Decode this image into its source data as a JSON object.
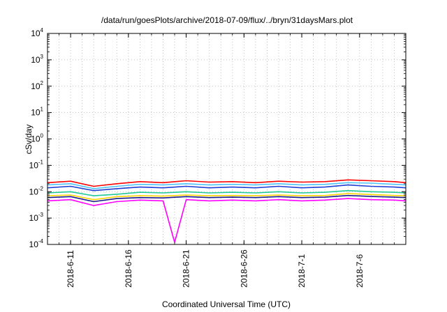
{
  "chart_data": {
    "type": "line",
    "title": "/data/run/goesPlots/archive/2018-07-09/flux/../bryn/31daysMars.plot",
    "xlabel": "Coordinated Universal Time (UTC)",
    "ylabel": "cSv/day",
    "yscale": "log",
    "ylim": [
      0.0001,
      10000
    ],
    "xlim": [
      "2018-06-09",
      "2018-07-10"
    ],
    "grid": true,
    "legend": "none",
    "y_ticks": [
      {
        "base": "10",
        "exp": "-4",
        "value": 0.0001
      },
      {
        "base": "10",
        "exp": "-3",
        "value": 0.001
      },
      {
        "base": "10",
        "exp": "-2",
        "value": 0.01
      },
      {
        "base": "10",
        "exp": "-1",
        "value": 0.1
      },
      {
        "base": "10",
        "exp": "0",
        "value": 1
      },
      {
        "base": "10",
        "exp": "1",
        "value": 10
      },
      {
        "base": "10",
        "exp": "2",
        "value": 100
      },
      {
        "base": "10",
        "exp": "3",
        "value": 1000
      },
      {
        "base": "10",
        "exp": "4",
        "value": 10000
      }
    ],
    "x_ticks": [
      {
        "label": "2018-6-11",
        "date": "2018-06-11"
      },
      {
        "label": "2018-6-16",
        "date": "2018-06-16"
      },
      {
        "label": "2018-6-21",
        "date": "2018-06-21"
      },
      {
        "label": "2018-6-26",
        "date": "2018-06-26"
      },
      {
        "label": "2018-7-1",
        "date": "2018-07-01"
      },
      {
        "label": "2018-7-6",
        "date": "2018-07-06"
      }
    ],
    "series": [
      {
        "color": "#ff0000",
        "x": [
          "2018-06-09",
          "2018-06-11",
          "2018-06-13",
          "2018-06-15",
          "2018-06-17",
          "2018-06-19",
          "2018-06-21",
          "2018-06-23",
          "2018-06-25",
          "2018-06-27",
          "2018-06-29",
          "2018-07-01",
          "2018-07-03",
          "2018-07-05",
          "2018-07-07",
          "2018-07-09",
          "2018-07-10"
        ],
        "values": [
          0.022,
          0.025,
          0.016,
          0.02,
          0.024,
          0.022,
          0.026,
          0.023,
          0.024,
          0.022,
          0.025,
          0.023,
          0.024,
          0.028,
          0.026,
          0.024,
          0.022
        ]
      },
      {
        "color": "#4fc3f7",
        "x": [
          "2018-06-09",
          "2018-06-11",
          "2018-06-13",
          "2018-06-15",
          "2018-06-17",
          "2018-06-19",
          "2018-06-21",
          "2018-06-23",
          "2018-06-25",
          "2018-06-27",
          "2018-06-29",
          "2018-07-01",
          "2018-07-03",
          "2018-07-05",
          "2018-07-07",
          "2018-07-09",
          "2018-07-10"
        ],
        "values": [
          0.018,
          0.02,
          0.013,
          0.016,
          0.019,
          0.018,
          0.02,
          0.018,
          0.019,
          0.018,
          0.02,
          0.018,
          0.019,
          0.022,
          0.021,
          0.019,
          0.018
        ]
      },
      {
        "color": "#1f3fd6",
        "x": [
          "2018-06-09",
          "2018-06-11",
          "2018-06-13",
          "2018-06-15",
          "2018-06-17",
          "2018-06-19",
          "2018-06-21",
          "2018-06-23",
          "2018-06-25",
          "2018-06-27",
          "2018-06-29",
          "2018-07-01",
          "2018-07-03",
          "2018-07-05",
          "2018-07-07",
          "2018-07-09",
          "2018-07-10"
        ],
        "values": [
          0.014,
          0.016,
          0.011,
          0.013,
          0.015,
          0.014,
          0.016,
          0.014,
          0.015,
          0.014,
          0.016,
          0.014,
          0.015,
          0.018,
          0.016,
          0.015,
          0.014
        ]
      },
      {
        "color": "#20c997",
        "x": [
          "2018-06-09",
          "2018-06-11",
          "2018-06-13",
          "2018-06-15",
          "2018-06-17",
          "2018-06-19",
          "2018-06-21",
          "2018-06-23",
          "2018-06-25",
          "2018-06-27",
          "2018-06-29",
          "2018-07-01",
          "2018-07-03",
          "2018-07-05",
          "2018-07-07",
          "2018-07-09",
          "2018-07-10"
        ],
        "values": [
          0.009,
          0.01,
          0.007,
          0.008,
          0.0095,
          0.009,
          0.01,
          0.009,
          0.0095,
          0.009,
          0.01,
          0.009,
          0.0095,
          0.011,
          0.01,
          0.0095,
          0.009
        ]
      },
      {
        "color": "#ffd400",
        "x": [
          "2018-06-09",
          "2018-06-11",
          "2018-06-13",
          "2018-06-15",
          "2018-06-17",
          "2018-06-19",
          "2018-06-21",
          "2018-06-23",
          "2018-06-25",
          "2018-06-27",
          "2018-06-29",
          "2018-07-01",
          "2018-07-03",
          "2018-07-05",
          "2018-07-07",
          "2018-07-09",
          "2018-07-10"
        ],
        "values": [
          0.007,
          0.0075,
          0.005,
          0.0065,
          0.007,
          0.0068,
          0.0075,
          0.007,
          0.0072,
          0.007,
          0.0075,
          0.007,
          0.0072,
          0.0085,
          0.0078,
          0.0072,
          0.007
        ]
      },
      {
        "color": "#1c1c8c",
        "x": [
          "2018-06-09",
          "2018-06-11",
          "2018-06-13",
          "2018-06-15",
          "2018-06-17",
          "2018-06-19",
          "2018-06-21",
          "2018-06-23",
          "2018-06-25",
          "2018-06-27",
          "2018-06-29",
          "2018-07-01",
          "2018-07-03",
          "2018-07-05",
          "2018-07-07",
          "2018-07-09",
          "2018-07-10"
        ],
        "values": [
          0.006,
          0.0065,
          0.0042,
          0.0055,
          0.006,
          0.0058,
          0.0065,
          0.006,
          0.0062,
          0.006,
          0.0065,
          0.006,
          0.0062,
          0.0072,
          0.0066,
          0.0062,
          0.006
        ]
      },
      {
        "color": "#ff00ff",
        "x": [
          "2018-06-09",
          "2018-06-11",
          "2018-06-13",
          "2018-06-15",
          "2018-06-17",
          "2018-06-19",
          "2018-06-20",
          "2018-06-21",
          "2018-06-23",
          "2018-06-25",
          "2018-06-27",
          "2018-06-29",
          "2018-07-01",
          "2018-07-03",
          "2018-07-05",
          "2018-07-07",
          "2018-07-09",
          "2018-07-10"
        ],
        "values": [
          0.0045,
          0.005,
          0.003,
          0.0042,
          0.0048,
          0.0045,
          0.00012,
          0.005,
          0.0045,
          0.0048,
          0.0045,
          0.005,
          0.0045,
          0.0048,
          0.0055,
          0.005,
          0.0048,
          0.0045
        ]
      }
    ]
  }
}
